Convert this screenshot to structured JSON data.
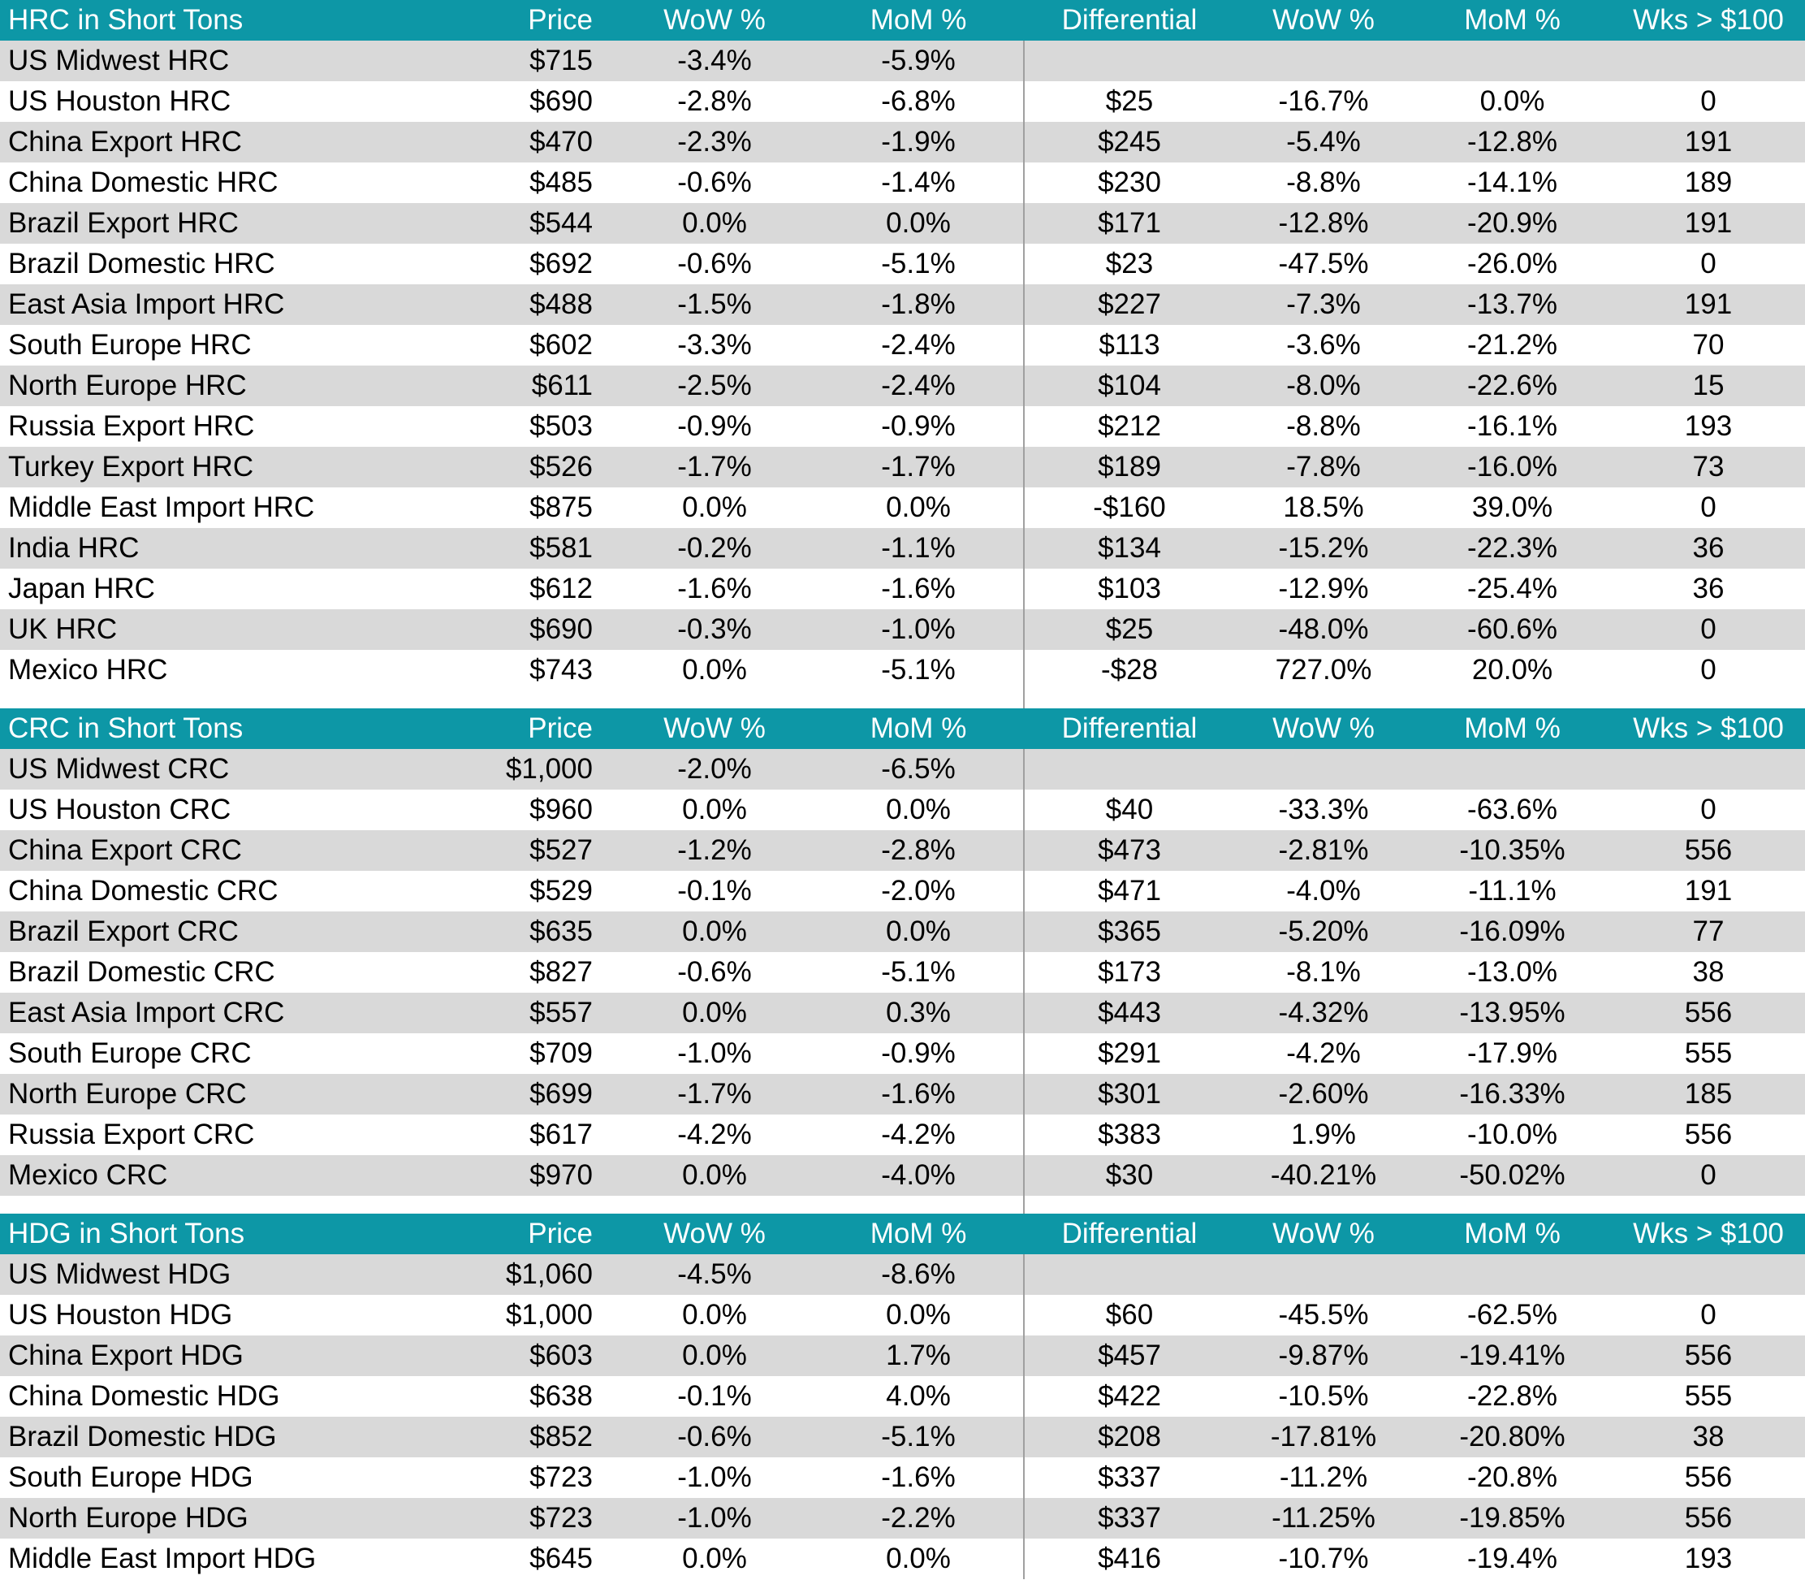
{
  "colors": {
    "header_bg": "#0D97A6",
    "header_text": "#FFFFFF",
    "row_stripe": "#D9D9D9",
    "row_white": "#FFFFFF",
    "negative_text": "#C00000",
    "positive_text": "#305C30",
    "plain_text": "#000000",
    "divider_line": "#A0A0A0"
  },
  "chart_data": [
    {
      "type": "table",
      "title": "HRC in Short Tons",
      "columns": [
        "Price",
        "WoW %",
        "MoM %",
        "Differential",
        "WoW %",
        "MoM %",
        "Wks > $100"
      ],
      "rows": [
        [
          "US Midwest HRC",
          "$715",
          "-3.4%",
          "-5.9%",
          "",
          "",
          "",
          ""
        ],
        [
          "US Houston HRC",
          "$690",
          "-2.8%",
          "-6.8%",
          "$25",
          "-16.7%",
          "0.0%",
          "0"
        ],
        [
          "China Export HRC",
          "$470",
          "-2.3%",
          "-1.9%",
          "$245",
          "-5.4%",
          "-12.8%",
          "191"
        ],
        [
          "China Domestic HRC",
          "$485",
          "-0.6%",
          "-1.4%",
          "$230",
          "-8.8%",
          "-14.1%",
          "189"
        ],
        [
          "Brazil Export HRC",
          "$544",
          "0.0%",
          "0.0%",
          "$171",
          "-12.8%",
          "-20.9%",
          "191"
        ],
        [
          "Brazil Domestic HRC",
          "$692",
          "-0.6%",
          "-5.1%",
          "$23",
          "-47.5%",
          "-26.0%",
          "0"
        ],
        [
          "East Asia Import HRC",
          "$488",
          "-1.5%",
          "-1.8%",
          "$227",
          "-7.3%",
          "-13.7%",
          "191"
        ],
        [
          "South Europe HRC",
          "$602",
          "-3.3%",
          "-2.4%",
          "$113",
          "-3.6%",
          "-21.2%",
          "70"
        ],
        [
          "North Europe HRC",
          "$611",
          "-2.5%",
          "-2.4%",
          "$104",
          "-8.0%",
          "-22.6%",
          "15"
        ],
        [
          "Russia Export HRC",
          "$503",
          "-0.9%",
          "-0.9%",
          "$212",
          "-8.8%",
          "-16.1%",
          "193"
        ],
        [
          "Turkey Export HRC",
          "$526",
          "-1.7%",
          "-1.7%",
          "$189",
          "-7.8%",
          "-16.0%",
          "73"
        ],
        [
          "Middle East Import HRC",
          "$875",
          "0.0%",
          "0.0%",
          "-$160",
          "18.5%",
          "39.0%",
          "0"
        ],
        [
          "India HRC",
          "$581",
          "-0.2%",
          "-1.1%",
          "$134",
          "-15.2%",
          "-22.3%",
          "36"
        ],
        [
          "Japan HRC",
          "$612",
          "-1.6%",
          "-1.6%",
          "$103",
          "-12.9%",
          "-25.4%",
          "36"
        ],
        [
          "UK HRC",
          "$690",
          "-0.3%",
          "-1.0%",
          "$25",
          "-48.0%",
          "-60.6%",
          "0"
        ],
        [
          "Mexico HRC",
          "$743",
          "0.0%",
          "-5.1%",
          "-$28",
          "727.0%",
          "20.0%",
          "0"
        ]
      ]
    },
    {
      "type": "table",
      "title": "CRC in Short Tons",
      "columns": [
        "Price",
        "WoW %",
        "MoM %",
        "Differential",
        "WoW %",
        "MoM %",
        "Wks > $100"
      ],
      "rows": [
        [
          "US Midwest CRC",
          "$1,000",
          "-2.0%",
          "-6.5%",
          "",
          "",
          "",
          ""
        ],
        [
          "US Houston CRC",
          "$960",
          "0.0%",
          "0.0%",
          "$40",
          "-33.3%",
          "-63.6%",
          "0"
        ],
        [
          "China Export CRC",
          "$527",
          "-1.2%",
          "-2.8%",
          "$473",
          "-2.81%",
          "-10.35%",
          "556"
        ],
        [
          "China Domestic CRC",
          "$529",
          "-0.1%",
          "-2.0%",
          "$471",
          "-4.0%",
          "-11.1%",
          "191"
        ],
        [
          "Brazil Export CRC",
          "$635",
          "0.0%",
          "0.0%",
          "$365",
          "-5.20%",
          "-16.09%",
          "77"
        ],
        [
          "Brazil Domestic CRC",
          "$827",
          "-0.6%",
          "-5.1%",
          "$173",
          "-8.1%",
          "-13.0%",
          "38"
        ],
        [
          "East Asia Import CRC",
          "$557",
          "0.0%",
          "0.3%",
          "$443",
          "-4.32%",
          "-13.95%",
          "556"
        ],
        [
          "South Europe CRC",
          "$709",
          "-1.0%",
          "-0.9%",
          "$291",
          "-4.2%",
          "-17.9%",
          "555"
        ],
        [
          "North Europe CRC",
          "$699",
          "-1.7%",
          "-1.6%",
          "$301",
          "-2.60%",
          "-16.33%",
          "185"
        ],
        [
          "Russia Export CRC",
          "$617",
          "-4.2%",
          "-4.2%",
          "$383",
          "1.9%",
          "-10.0%",
          "556"
        ],
        [
          "Mexico CRC",
          "$970",
          "0.0%",
          "-4.0%",
          "$30",
          "-40.21%",
          "-50.02%",
          "0"
        ]
      ]
    },
    {
      "type": "table",
      "title": "HDG in Short Tons",
      "columns": [
        "Price",
        "WoW %",
        "MoM %",
        "Differential",
        "WoW %",
        "MoM %",
        "Wks > $100"
      ],
      "rows": [
        [
          "US Midwest HDG",
          "$1,060",
          "-4.5%",
          "-8.6%",
          "",
          "",
          "",
          ""
        ],
        [
          "US Houston HDG",
          "$1,000",
          "0.0%",
          "0.0%",
          "$60",
          "-45.5%",
          "-62.5%",
          "0"
        ],
        [
          "China Export HDG",
          "$603",
          "0.0%",
          "1.7%",
          "$457",
          "-9.87%",
          "-19.41%",
          "556"
        ],
        [
          "China Domestic HDG",
          "$638",
          "-0.1%",
          "4.0%",
          "$422",
          "-10.5%",
          "-22.8%",
          "555"
        ],
        [
          "Brazil Domestic HDG",
          "$852",
          "-0.6%",
          "-5.1%",
          "$208",
          "-17.81%",
          "-20.80%",
          "38"
        ],
        [
          "South Europe HDG",
          "$723",
          "-1.0%",
          "-1.6%",
          "$337",
          "-11.2%",
          "-20.8%",
          "556"
        ],
        [
          "North Europe HDG",
          "$723",
          "-1.0%",
          "-2.2%",
          "$337",
          "-11.25%",
          "-19.85%",
          "556"
        ],
        [
          "Middle East Import HDG",
          "$645",
          "0.0%",
          "0.0%",
          "$416",
          "-10.7%",
          "-19.4%",
          "193"
        ]
      ]
    }
  ]
}
